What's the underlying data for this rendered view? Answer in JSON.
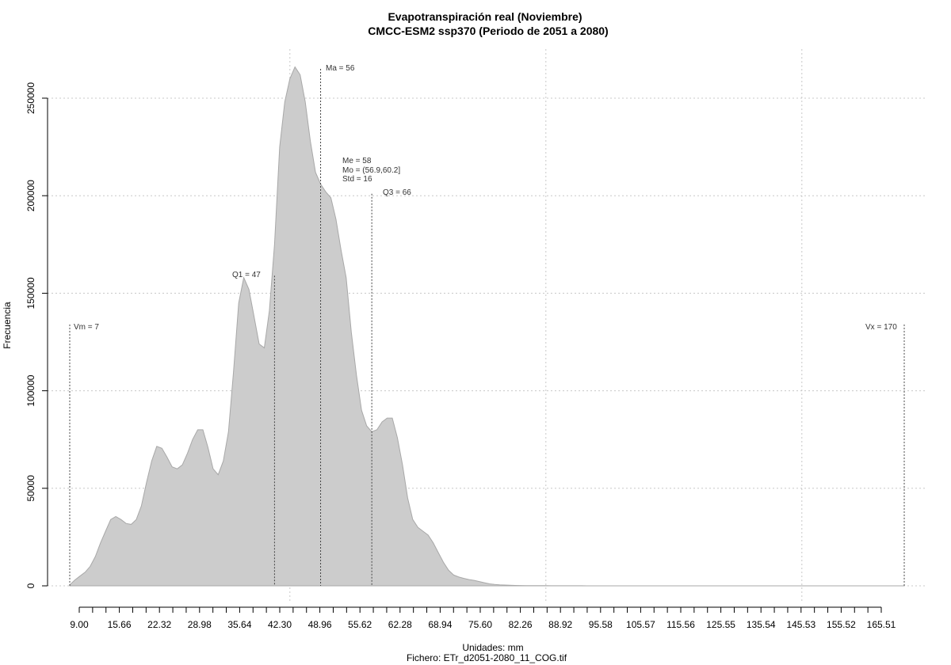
{
  "chart_data": {
    "type": "area",
    "title": "Evapotranspiración real (Noviembre)",
    "subtitle": "CMCC-ESM2 ssp370 (Periodo de 2051 a 2080)",
    "xlabel": "Unidades: mm",
    "footer": "Fichero: ETr_d2051-2080_11_COG.tif",
    "ylabel": "Frecuencia",
    "xlim": [
      0,
      172
    ],
    "ylim": [
      0,
      270000
    ],
    "x_tick_labels": [
      "9.00",
      "15.66",
      "22.32",
      "28.98",
      "35.64",
      "42.30",
      "48.96",
      "55.62",
      "62.28",
      "68.94",
      "75.60",
      "82.26",
      "88.92",
      "95.58",
      "105.57",
      "115.56",
      "125.55",
      "135.54",
      "145.53",
      "155.52",
      "165.51"
    ],
    "y_tick_labels": [
      "0",
      "50000",
      "100000",
      "150000",
      "200000",
      "250000"
    ],
    "grid": true,
    "series": [
      {
        "x": [
          7,
          8,
          9,
          10,
          11,
          12,
          13,
          14,
          15,
          16,
          17,
          18,
          19,
          20,
          21,
          22,
          23,
          24,
          25,
          26,
          27,
          28,
          29,
          30,
          31,
          32,
          33,
          34,
          35,
          36,
          37,
          38,
          39,
          40,
          41,
          42,
          43,
          44,
          45,
          46,
          47,
          48,
          49,
          50,
          51,
          52,
          53,
          54,
          55,
          56,
          57,
          58,
          59,
          60,
          61,
          62,
          63,
          64,
          65,
          66,
          67,
          68,
          69,
          70,
          71,
          72,
          73,
          74,
          75,
          76,
          77,
          78,
          79,
          80,
          81,
          82,
          83,
          84,
          85,
          86,
          87,
          88,
          89,
          90,
          91,
          92,
          93,
          94,
          95,
          96,
          97,
          98,
          99,
          100,
          101,
          102,
          103,
          104,
          105,
          106,
          107,
          108,
          110,
          115,
          120,
          130,
          140,
          150,
          160,
          170
        ],
        "y": [
          500,
          3000,
          5000,
          7000,
          10000,
          15000,
          22000,
          28000,
          34000,
          35500,
          34000,
          32000,
          31500,
          34000,
          41000,
          53000,
          64000,
          71500,
          70500,
          66000,
          61000,
          60000,
          62000,
          68000,
          75000,
          80000,
          80000,
          71000,
          60000,
          57000,
          64000,
          79000,
          110000,
          145000,
          158000,
          152000,
          138000,
          124000,
          122000,
          141000,
          175000,
          225000,
          248000,
          260000,
          266000,
          262000,
          248000,
          228000,
          212000,
          206000,
          202000,
          199000,
          188000,
          172000,
          158000,
          130000,
          108000,
          90000,
          82000,
          79000,
          80000,
          84000,
          86000,
          86000,
          76000,
          62000,
          45000,
          34000,
          30000,
          28000,
          26000,
          22000,
          17000,
          12000,
          8000,
          5500,
          4500,
          3800,
          3200,
          2800,
          2200,
          1600,
          1000,
          700,
          500,
          400,
          300,
          200,
          150,
          120,
          100,
          90,
          80,
          70,
          60,
          50,
          45,
          40,
          35,
          30,
          25,
          20,
          15,
          10,
          8,
          5,
          3,
          2,
          1,
          0
        ]
      }
    ],
    "annotations": {
      "vm": {
        "label": "Vm = 7",
        "x": 7
      },
      "vx": {
        "label": "Vx = 170",
        "x": 170
      },
      "q1": {
        "label": "Q1 = 47",
        "x": 47
      },
      "ma": {
        "label": "Ma = 56",
        "x": 56
      },
      "q3": {
        "label": "Q3 = 66",
        "x": 66
      },
      "stats": [
        "Me = 58",
        "Mo = (56.9,60.2]",
        "Std = 16"
      ]
    }
  }
}
